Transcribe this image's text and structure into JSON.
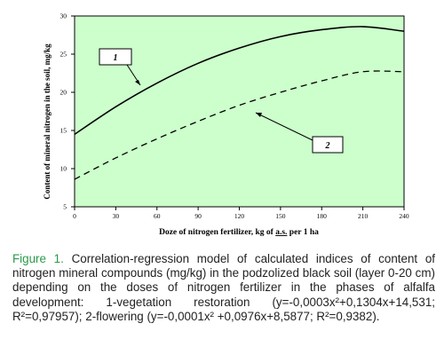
{
  "chart_data": {
    "type": "line",
    "xlabel": "Doze of nitrogen fertilizer, kg of a.s. per 1 ha",
    "ylabel": "Content of mineral nitrogen in the soil, mg/kg",
    "xlim": [
      0,
      240
    ],
    "ylim": [
      5,
      30
    ],
    "x_ticks": [
      "0",
      "30",
      "60",
      "90",
      "120",
      "150",
      "180",
      "210",
      "240"
    ],
    "y_ticks": [
      "5",
      "10",
      "15",
      "20",
      "25",
      "30"
    ],
    "grid": false,
    "background": "#ccffcc",
    "series": [
      {
        "name": "1",
        "style": "solid",
        "x": [
          0,
          30,
          60,
          90,
          120,
          150,
          180,
          210,
          240
        ],
        "y": [
          14.5,
          18.1,
          21.2,
          23.8,
          25.8,
          27.3,
          28.2,
          28.6,
          28.0
        ]
      },
      {
        "name": "2",
        "style": "dashed",
        "x": [
          0,
          30,
          60,
          90,
          120,
          150,
          180,
          210,
          240
        ],
        "y": [
          8.6,
          11.4,
          13.9,
          16.2,
          18.3,
          20.0,
          21.5,
          22.7,
          22.7
        ]
      }
    ]
  },
  "caption": {
    "label": "Figure 1.",
    "text": " Correlation-regression model of calculated indices of content of nitrogen mineral compounds (mg/kg) in the podzolized black soil (layer 0-20 cm) depending on the doses of nitrogen fertilizer in the phases of alfalfa development: 1-vegetation restoration (y=-0,0003x²+0,1304x+14,531; R²=0,97957); 2-flowering (y=-0,0001x² +0,0976x+8,5877; R²=0,9382)."
  },
  "colors": {
    "caption_label": "#2a9a4a",
    "plot_background": "#ccffcc"
  }
}
